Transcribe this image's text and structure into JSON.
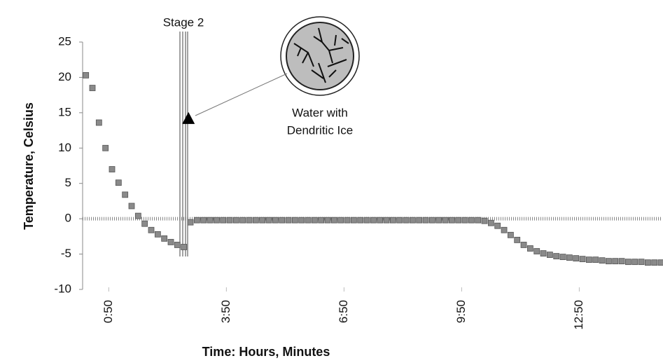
{
  "chart_data": {
    "type": "scatter",
    "xlabel": "Time: Hours, Minutes",
    "ylabel": "Temperature, Celsius",
    "annotations": {
      "stage": "Stage 2",
      "icon_line1": "Water with",
      "icon_line2": "Dendritic Ice"
    },
    "marker": {
      "x": 172,
      "y": 14.2
    },
    "color": "#8a8a8a",
    "x": [
      15,
      25,
      35,
      45,
      55,
      65,
      75,
      85,
      95,
      105,
      115,
      125,
      135,
      145,
      155,
      165,
      175,
      185,
      195,
      205,
      215,
      225,
      235,
      245,
      255,
      265,
      275,
      285,
      295,
      305,
      315,
      325,
      335,
      345,
      355,
      365,
      375,
      385,
      395,
      405,
      415,
      425,
      435,
      445,
      455,
      465,
      475,
      485,
      495,
      505,
      515,
      525,
      535,
      545,
      555,
      565,
      575,
      585,
      595,
      605,
      615,
      625,
      635,
      645,
      655,
      665,
      675,
      685,
      695,
      705,
      715,
      725,
      735,
      745,
      755,
      765,
      775,
      785,
      795,
      805,
      815,
      825,
      835,
      845,
      855,
      865,
      875,
      885,
      895
    ],
    "values": [
      20.3,
      18.5,
      13.6,
      10.0,
      7.0,
      5.1,
      3.4,
      1.8,
      0.4,
      -0.7,
      -1.6,
      -2.2,
      -2.8,
      -3.3,
      -3.7,
      -4.0,
      -0.5,
      -0.2,
      -0.2,
      -0.2,
      -0.2,
      -0.2,
      -0.2,
      -0.2,
      -0.2,
      -0.2,
      -0.2,
      -0.2,
      -0.2,
      -0.2,
      -0.2,
      -0.2,
      -0.2,
      -0.2,
      -0.2,
      -0.2,
      -0.2,
      -0.2,
      -0.2,
      -0.2,
      -0.2,
      -0.2,
      -0.2,
      -0.2,
      -0.2,
      -0.2,
      -0.2,
      -0.2,
      -0.2,
      -0.2,
      -0.2,
      -0.2,
      -0.2,
      -0.2,
      -0.2,
      -0.2,
      -0.2,
      -0.2,
      -0.2,
      -0.2,
      -0.2,
      -0.3,
      -0.6,
      -1.0,
      -1.6,
      -2.3,
      -3.0,
      -3.7,
      -4.2,
      -4.6,
      -4.9,
      -5.1,
      -5.3,
      -5.4,
      -5.5,
      -5.6,
      -5.7,
      -5.8,
      -5.8,
      -5.9,
      -6.0,
      -6.0,
      -6.0,
      -6.1,
      -6.1,
      -6.1,
      -6.2,
      -6.2,
      -6.2
    ],
    "xlim": [
      10,
      896
    ],
    "ylim": [
      -10,
      25
    ],
    "xticks": [
      {
        "value": 50,
        "label": "0:50"
      },
      {
        "value": 230,
        "label": "3:50"
      },
      {
        "value": 410,
        "label": "6:50"
      },
      {
        "value": 590,
        "label": "9:50"
      },
      {
        "value": 770,
        "label": "12:50"
      }
    ],
    "yticks": [
      -10,
      -5,
      0,
      5,
      10,
      15,
      20,
      25
    ]
  }
}
